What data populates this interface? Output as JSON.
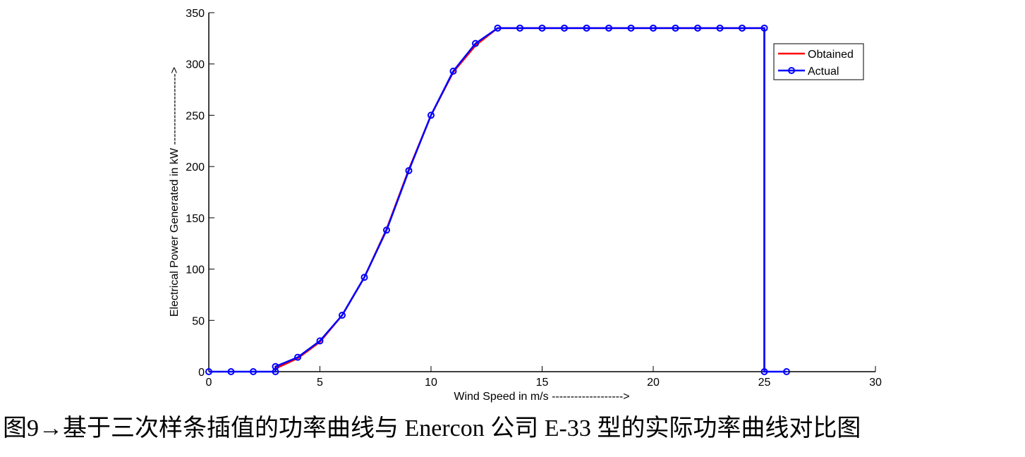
{
  "chart_data": {
    "type": "line",
    "xlabel": "Wind Speed in m/s ------------------->",
    "ylabel": "Electrical Power Generated in kW ------------------->",
    "xlim": [
      0,
      30
    ],
    "xticks": [
      0,
      5,
      10,
      15,
      20,
      25,
      30
    ],
    "ylim": [
      0,
      350
    ],
    "yticks": [
      0,
      50,
      100,
      150,
      200,
      250,
      300,
      350
    ],
    "legend": "northeast",
    "series": [
      {
        "name": "Obtained",
        "color": "#ff0000",
        "marker": false,
        "x": [
          3,
          4,
          5,
          6,
          7,
          8,
          9,
          10,
          11,
          12,
          13,
          14,
          15,
          16,
          17,
          18,
          19,
          20,
          21,
          22,
          23,
          24,
          25,
          25
        ],
        "values": [
          3,
          13,
          29,
          55,
          92,
          139,
          197,
          250,
          292,
          318,
          335,
          335,
          335,
          335,
          335,
          335,
          335,
          335,
          335,
          335,
          335,
          335,
          335,
          0
        ]
      },
      {
        "name": "Actual",
        "color": "#0000ff",
        "marker": true,
        "x": [
          0,
          1,
          2,
          3,
          3,
          4,
          5,
          6,
          7,
          8,
          9,
          10,
          11,
          12,
          13,
          14,
          15,
          16,
          17,
          18,
          19,
          20,
          21,
          22,
          23,
          24,
          25,
          25,
          26
        ],
        "values": [
          0,
          0,
          0,
          0,
          5,
          14,
          30,
          55,
          92,
          138,
          196,
          250,
          293,
          320,
          335,
          335,
          335,
          335,
          335,
          335,
          335,
          335,
          335,
          335,
          335,
          335,
          335,
          0,
          0
        ]
      }
    ]
  },
  "caption": "图9→基于三次样条插值的功率曲线与 Enercon 公司 E-33 型的实际功率曲线对比图"
}
